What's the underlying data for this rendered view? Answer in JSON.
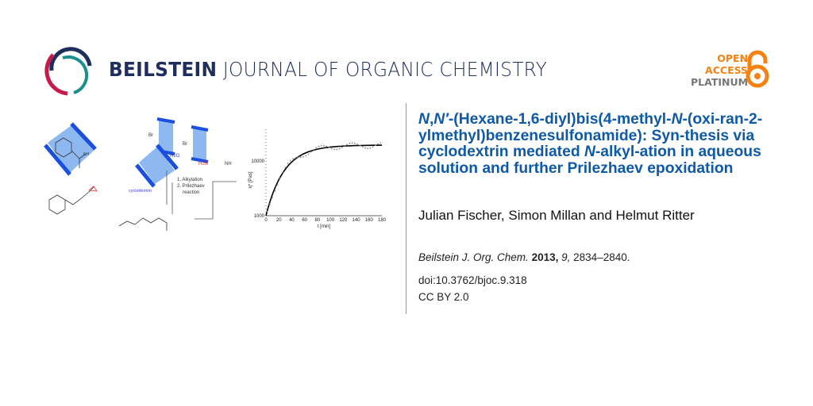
{
  "header": {
    "journal_bold": "BEILSTEIN",
    "journal_rest": " JOURNAL OF ORGANIC CHEMISTRY",
    "badge": {
      "line1": "OPEN",
      "line2": "ACCESS",
      "line3": "PLATINUM"
    },
    "colors": {
      "navy": "#1e2f5e",
      "red": "#c8194b",
      "teal": "#1a8f8f",
      "orange": "#f68212"
    }
  },
  "article": {
    "title_segments": [
      {
        "text": "N",
        "italic": true
      },
      {
        "text": ",",
        "italic": false
      },
      {
        "text": "N′",
        "italic": true
      },
      {
        "text": "-(Hexane-1,6-diyl)bis(4-methyl-",
        "italic": false
      },
      {
        "text": "N",
        "italic": true
      },
      {
        "text": "-(oxi-ran-2-ylmethyl)benzenesulfonamide): Syn-thesis via cyclodextrin mediated ",
        "italic": false
      },
      {
        "text": "N",
        "italic": true
      },
      {
        "text": "-alkyl-ation in aqueous solution and further Prilezhaev epoxidation",
        "italic": false
      }
    ],
    "authors": "Julian Fischer, Simon Millan and Helmut Ritter",
    "citation": {
      "journal": "Beilstein J. Org. Chem.",
      "year": "2013,",
      "volume": "9,",
      "pages": "2834–2840."
    },
    "doi": "doi:10.3762/bjoc.9.318",
    "license": "CC BY 2.0",
    "title_color": "#0e5aa7"
  },
  "graphic": {
    "labels": {
      "h2o": "H2O",
      "cyclodextrin": "cyclodextrin",
      "step1": "1. Alkylation",
      "step2": "2. Prilezhaev",
      "step2b": "reaction",
      "br1": "Br",
      "br2": "Br",
      "nh": "NH",
      "h2n": "H2N",
      "o": "O"
    },
    "chart_data": {
      "type": "scatter",
      "xlabel": "t [min]",
      "ylabel": "η* [Pas]",
      "xticks": [
        0,
        20,
        40,
        60,
        80,
        100,
        120,
        140,
        160,
        180
      ],
      "yticks": [
        1000,
        10000
      ],
      "xlim": [
        0,
        180
      ],
      "ylim": [
        1000,
        38000
      ],
      "yscale": "log",
      "fit_plateau": 19500
    }
  }
}
